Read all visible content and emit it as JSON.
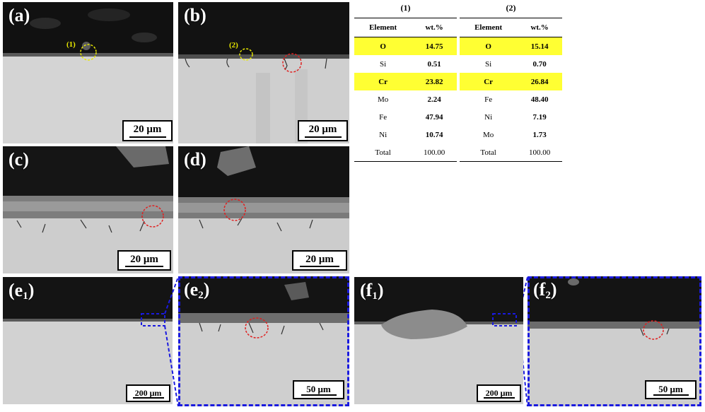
{
  "panels": {
    "a": {
      "label": "(a)",
      "scale": "20 μm",
      "marker": "(1)"
    },
    "b": {
      "label": "(b)",
      "scale": "20 μm",
      "marker": "(2)"
    },
    "c": {
      "label": "(c)",
      "scale": "20 μm"
    },
    "d": {
      "label": "(d)",
      "scale": "20 μm"
    },
    "e1": {
      "label": "e",
      "sub": "1",
      "scale": "200 μm"
    },
    "e2": {
      "label": "e",
      "sub": "2",
      "scale": "50 μm"
    },
    "f1": {
      "label": "f",
      "sub": "1",
      "scale": "200 μm"
    },
    "f2": {
      "label": "f",
      "sub": "2",
      "scale": "50 μm"
    }
  },
  "colors": {
    "highlight": "#ffff33",
    "zoom_frame": "#1a1adf",
    "marker_yellow": "#e8e800",
    "marker_red": "#e02020"
  },
  "eds_tables": [
    {
      "caption": "(1)",
      "headers": [
        "Element",
        "wt.%"
      ],
      "rows": [
        {
          "element": "O",
          "value": "14.75",
          "highlight": true
        },
        {
          "element": "Si",
          "value": "0.51",
          "highlight": false
        },
        {
          "element": "Cr",
          "value": "23.82",
          "highlight": true
        },
        {
          "element": "Mo",
          "value": "2.24",
          "highlight": false
        },
        {
          "element": "Fe",
          "value": "47.94",
          "highlight": false
        },
        {
          "element": "Ni",
          "value": "10.74",
          "highlight": false
        },
        {
          "element": "Total",
          "value": "100.00",
          "highlight": false
        }
      ]
    },
    {
      "caption": "(2)",
      "headers": [
        "Element",
        "wt.%"
      ],
      "rows": [
        {
          "element": "O",
          "value": "15.14",
          "highlight": true
        },
        {
          "element": "Si",
          "value": "0.70",
          "highlight": false
        },
        {
          "element": "Cr",
          "value": "26.84",
          "highlight": true
        },
        {
          "element": "Fe",
          "value": "48.40",
          "highlight": false
        },
        {
          "element": "Ni",
          "value": "7.19",
          "highlight": false
        },
        {
          "element": "Mo",
          "value": "1.73",
          "highlight": false
        },
        {
          "element": "Total",
          "value": "100.00",
          "highlight": false
        }
      ]
    }
  ]
}
